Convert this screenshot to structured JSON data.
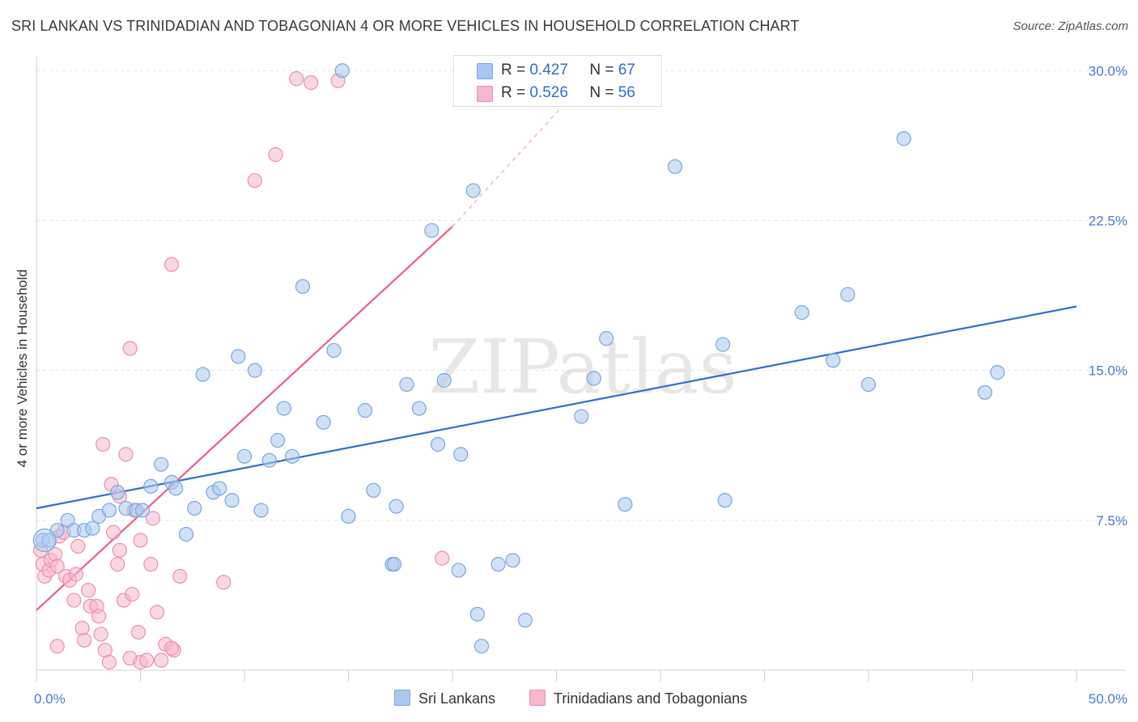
{
  "header": {
    "title": "SRI LANKAN VS TRINIDADIAN AND TOBAGONIAN 4 OR MORE VEHICLES IN HOUSEHOLD CORRELATION CHART",
    "source": "Source: ZipAtlas.com"
  },
  "watermark": "ZIPatlas",
  "legend": {
    "rows": [
      {
        "r_label": "R =",
        "r_value": "0.427",
        "n_label": "N =",
        "n_value": "67"
      },
      {
        "r_label": "R =",
        "r_value": "0.526",
        "n_label": "N =",
        "n_value": "56"
      }
    ]
  },
  "bottom_legend": {
    "series1": "Sri Lankans",
    "series2": "Trinidadians and Tobagonians"
  },
  "colors": {
    "blue_fill": "#aac8ef",
    "blue_stroke": "#7aa6e0",
    "blue_line": "#2f6fd0",
    "pink_fill": "#f6b8cb",
    "pink_stroke": "#ec8fae",
    "pink_line": "#e8608e",
    "tick_text": "#4a7bd0"
  },
  "chart_data": {
    "type": "scatter",
    "title": "SRI LANKAN VS TRINIDADIAN AND TOBAGONIAN 4 OR MORE VEHICLES IN HOUSEHOLD CORRELATION CHART",
    "xlabel": "",
    "ylabel": "4 or more Vehicles in Household",
    "xlim": [
      0,
      50
    ],
    "ylim": [
      0,
      30.7
    ],
    "x_tick_labels": [
      {
        "value": 0,
        "label": "0.0%"
      },
      {
        "value": 50,
        "label": "50.0%"
      }
    ],
    "y_tick_labels": [
      {
        "value": 7.5,
        "label": "7.5%"
      },
      {
        "value": 15.0,
        "label": "15.0%"
      },
      {
        "value": 22.5,
        "label": "22.5%"
      },
      {
        "value": 30.0,
        "label": "30.0%"
      }
    ],
    "x_minor_ticks": [
      0,
      5,
      10,
      15,
      20,
      25,
      30,
      35,
      40,
      45,
      50
    ],
    "grid": true,
    "series": [
      {
        "name": "Sri Lankans",
        "color": "#aac8ef",
        "points": [
          [
            0.3,
            6.5
          ],
          [
            0.6,
            6.5
          ],
          [
            1.0,
            7.0
          ],
          [
            1.5,
            7.5
          ],
          [
            1.8,
            7.0
          ],
          [
            2.3,
            7.0
          ],
          [
            2.7,
            7.1
          ],
          [
            3.0,
            7.7
          ],
          [
            3.5,
            8.0
          ],
          [
            3.9,
            8.9
          ],
          [
            4.3,
            8.1
          ],
          [
            4.8,
            8.0
          ],
          [
            5.1,
            8.0
          ],
          [
            5.5,
            9.2
          ],
          [
            6.0,
            10.3
          ],
          [
            6.5,
            9.4
          ],
          [
            6.7,
            9.1
          ],
          [
            7.2,
            6.8
          ],
          [
            7.6,
            8.1
          ],
          [
            8.0,
            14.8
          ],
          [
            8.5,
            8.9
          ],
          [
            8.8,
            9.1
          ],
          [
            9.4,
            8.5
          ],
          [
            9.7,
            15.7
          ],
          [
            10.0,
            10.7
          ],
          [
            10.5,
            15.0
          ],
          [
            10.8,
            8.0
          ],
          [
            11.2,
            10.5
          ],
          [
            11.6,
            11.5
          ],
          [
            11.9,
            13.1
          ],
          [
            12.3,
            10.7
          ],
          [
            12.8,
            19.2
          ],
          [
            13.8,
            12.4
          ],
          [
            14.3,
            16.0
          ],
          [
            15.0,
            7.7
          ],
          [
            15.8,
            13.0
          ],
          [
            16.2,
            9.0
          ],
          [
            17.1,
            5.3
          ],
          [
            17.3,
            8.2
          ],
          [
            17.2,
            5.3
          ],
          [
            17.8,
            14.3
          ],
          [
            18.4,
            13.1
          ],
          [
            19.0,
            22.0
          ],
          [
            19.3,
            11.3
          ],
          [
            19.6,
            14.5
          ],
          [
            20.3,
            5.0
          ],
          [
            20.4,
            10.8
          ],
          [
            21.0,
            24.0
          ],
          [
            21.2,
            2.8
          ],
          [
            21.4,
            1.2
          ],
          [
            22.2,
            5.3
          ],
          [
            22.9,
            5.5
          ],
          [
            23.5,
            2.5
          ],
          [
            26.2,
            12.7
          ],
          [
            26.8,
            14.6
          ],
          [
            27.4,
            16.6
          ],
          [
            28.3,
            8.3
          ],
          [
            30.7,
            25.2
          ],
          [
            33.0,
            16.3
          ],
          [
            33.1,
            8.5
          ],
          [
            36.8,
            17.9
          ],
          [
            38.3,
            15.5
          ],
          [
            39.0,
            18.8
          ],
          [
            40.0,
            14.3
          ],
          [
            41.7,
            26.6
          ],
          [
            45.6,
            13.9
          ],
          [
            46.2,
            14.9
          ],
          [
            14.7,
            30.0
          ]
        ]
      },
      {
        "name": "Trinidadians and Tobagonians",
        "color": "#f6b8cb",
        "points": [
          [
            0.2,
            6.0
          ],
          [
            0.3,
            5.3
          ],
          [
            0.4,
            4.7
          ],
          [
            0.6,
            5.0
          ],
          [
            0.7,
            5.5
          ],
          [
            0.9,
            5.8
          ],
          [
            1.0,
            5.2
          ],
          [
            1.0,
            1.2
          ],
          [
            1.1,
            6.7
          ],
          [
            1.3,
            6.9
          ],
          [
            1.4,
            4.7
          ],
          [
            1.6,
            4.5
          ],
          [
            1.8,
            3.5
          ],
          [
            1.9,
            4.8
          ],
          [
            2.0,
            6.2
          ],
          [
            2.2,
            2.1
          ],
          [
            2.3,
            1.5
          ],
          [
            2.5,
            4.0
          ],
          [
            2.6,
            3.2
          ],
          [
            2.9,
            3.2
          ],
          [
            3.0,
            2.7
          ],
          [
            3.1,
            1.8
          ],
          [
            3.3,
            1.0
          ],
          [
            3.5,
            0.4
          ],
          [
            3.7,
            6.9
          ],
          [
            3.9,
            5.3
          ],
          [
            4.0,
            6.0
          ],
          [
            4.2,
            3.5
          ],
          [
            4.6,
            3.8
          ],
          [
            3.2,
            11.3
          ],
          [
            3.6,
            9.3
          ],
          [
            4.0,
            8.7
          ],
          [
            4.5,
            0.6
          ],
          [
            4.7,
            8.0
          ],
          [
            4.9,
            1.9
          ],
          [
            5.0,
            0.4
          ],
          [
            5.0,
            6.5
          ],
          [
            5.3,
            0.5
          ],
          [
            5.5,
            5.3
          ],
          [
            5.6,
            7.6
          ],
          [
            5.8,
            2.9
          ],
          [
            6.0,
            0.5
          ],
          [
            6.2,
            1.3
          ],
          [
            6.6,
            1.0
          ],
          [
            6.5,
            1.1
          ],
          [
            6.5,
            20.3
          ],
          [
            6.9,
            4.7
          ],
          [
            4.3,
            10.8
          ],
          [
            4.5,
            16.1
          ],
          [
            9.0,
            4.4
          ],
          [
            10.5,
            24.5
          ],
          [
            11.5,
            25.8
          ],
          [
            12.5,
            29.6
          ],
          [
            13.2,
            29.4
          ],
          [
            14.5,
            29.5
          ],
          [
            19.5,
            5.6
          ]
        ]
      }
    ],
    "trend_lines": [
      {
        "series": "Sri Lankans",
        "x": [
          0,
          50
        ],
        "y": [
          8.1,
          18.2
        ]
      },
      {
        "series": "Trinidadians and Tobagonians",
        "x": [
          0,
          20.0
        ],
        "y": [
          3.0,
          22.2
        ],
        "dashed_extension_to": [
          26.5,
          29.6
        ]
      }
    ]
  }
}
